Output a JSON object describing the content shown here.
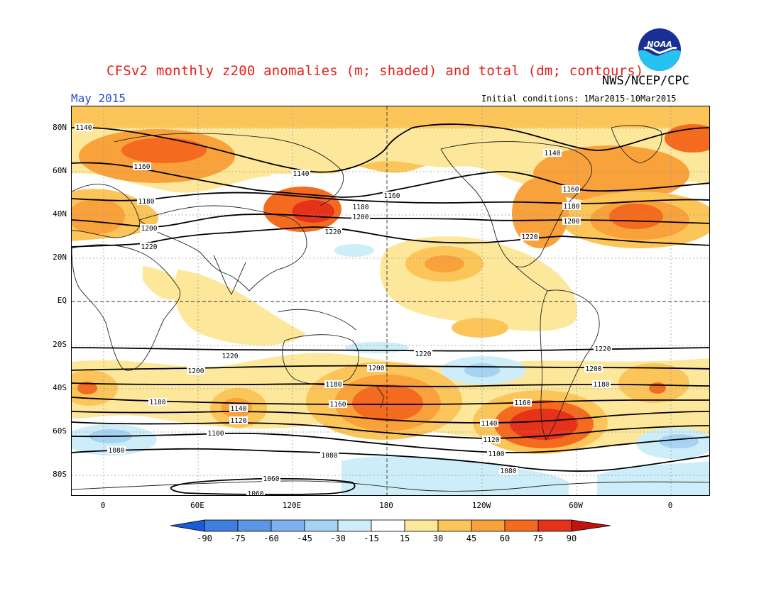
{
  "title": "CFSv2 monthly z200 anomalies (m; shaded) and total (dm; contours)",
  "agency": "NWS/NCEP/CPC",
  "logo_text": "NOAA",
  "valid_month": "May 2015",
  "initial_conditions": "Initial conditions: 1Mar2015-10Mar2015",
  "lat_labels": [
    "80N",
    "60N",
    "40N",
    "20N",
    "EQ",
    "20S",
    "40S",
    "60S",
    "80S"
  ],
  "lon_labels": [
    "0",
    "60E",
    "120E",
    "180",
    "120W",
    "60W",
    "0"
  ],
  "colorbar": {
    "labels": [
      "-90",
      "-75",
      "-60",
      "-45",
      "-30",
      "-15",
      "15",
      "30",
      "45",
      "60",
      "75",
      "90"
    ],
    "colors": [
      "#1c5bd6",
      "#3e7ee0",
      "#5c96e6",
      "#7fb1ee",
      "#a6d2f4",
      "#cdeef8",
      "#ffffff",
      "#fde79a",
      "#fcc55a",
      "#f9a13b",
      "#f46b1f",
      "#e7321a",
      "#c0150e"
    ]
  },
  "map": {
    "colors": {
      "a30": "#fde79a",
      "a45": "#fcc55a",
      "a60": "#f9a13b",
      "a75": "#f46b1f",
      "a90": "#e7321a",
      "b15": "#cdeef8",
      "b30": "#a6d2f4",
      "b45": "#7fb1ee"
    },
    "contour_labels": [
      {
        "text": "1140"
      },
      {
        "text": "1160"
      },
      {
        "text": "1140"
      },
      {
        "text": "1140"
      },
      {
        "text": "1160"
      },
      {
        "text": "1160"
      },
      {
        "text": "1180"
      },
      {
        "text": "1180"
      },
      {
        "text": "1180"
      },
      {
        "text": "1200"
      },
      {
        "text": "1200"
      },
      {
        "text": "1200"
      },
      {
        "text": "1220"
      },
      {
        "text": "1220"
      },
      {
        "text": "1220"
      },
      {
        "text": "1220"
      },
      {
        "text": "1220"
      },
      {
        "text": "1220"
      },
      {
        "text": "1200"
      },
      {
        "text": "1200"
      },
      {
        "text": "1200"
      },
      {
        "text": "1180"
      },
      {
        "text": "1180"
      },
      {
        "text": "1180"
      },
      {
        "text": "1160"
      },
      {
        "text": "1160"
      },
      {
        "text": "1140"
      },
      {
        "text": "1140"
      },
      {
        "text": "1120"
      },
      {
        "text": "1120"
      },
      {
        "text": "1100"
      },
      {
        "text": "1100"
      },
      {
        "text": "1080"
      },
      {
        "text": "1080"
      },
      {
        "text": "1080"
      },
      {
        "text": "1060"
      },
      {
        "text": "1060"
      }
    ]
  }
}
